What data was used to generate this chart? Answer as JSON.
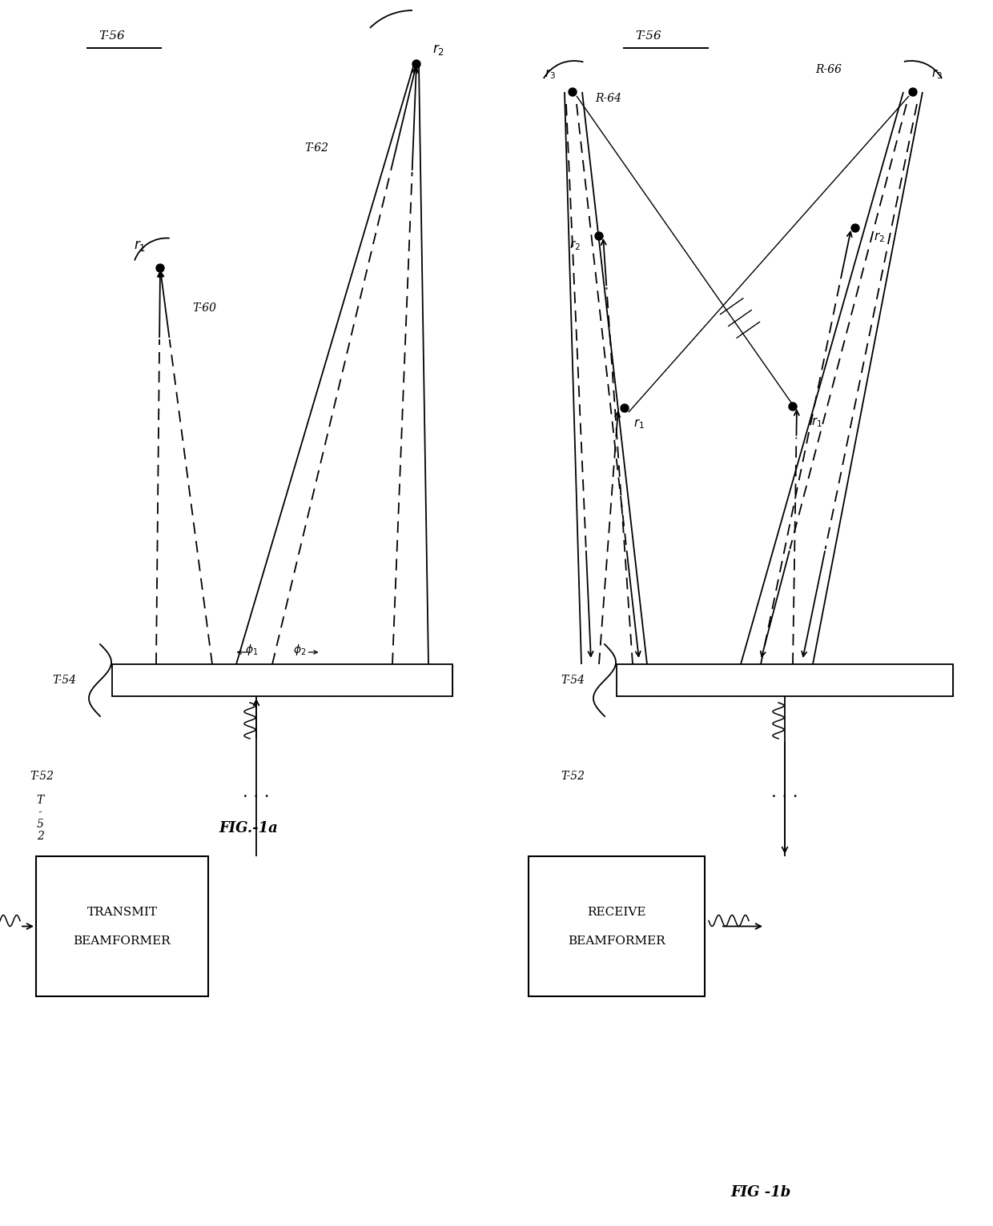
{
  "bg_color": "#ffffff",
  "lc": "#000000",
  "lw": 1.3,
  "fig1a_label": "FIG.-1a",
  "fig1b_label": "FIG -1b",
  "t56": "T-56",
  "t54": "T-54",
  "t52": "T-52",
  "t60": "T-60",
  "t62": "T-62",
  "r64": "R-64",
  "r66": "R-66",
  "tx_lines": [
    "TRANSMIT",
    "BEAMFORMER"
  ],
  "rx_lines": [
    "RECEIVE",
    "BEAMFORMER"
  ]
}
